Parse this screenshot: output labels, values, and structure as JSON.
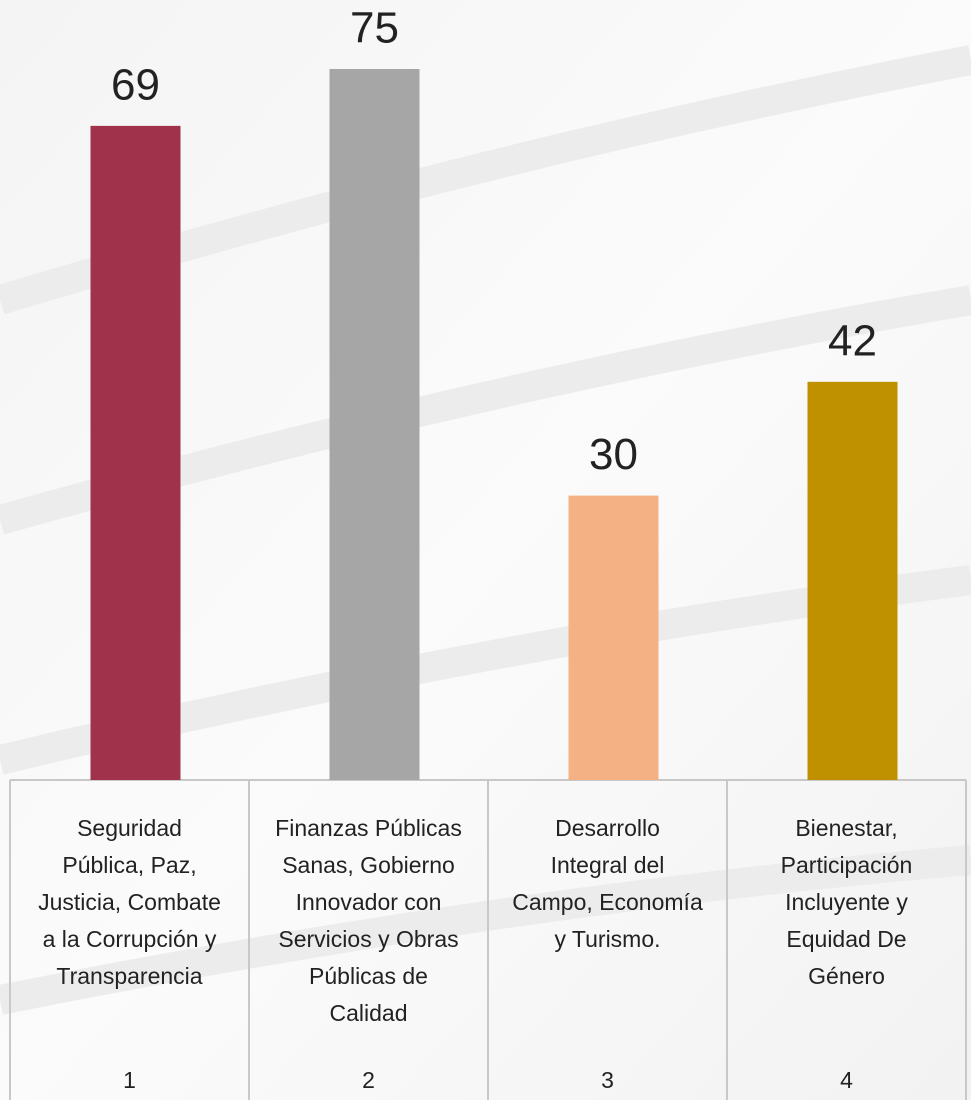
{
  "chart_data": {
    "type": "bar",
    "categories": [
      [
        "Seguridad",
        "Pública, Paz,",
        "Justicia, Combate",
        "a la Corrupción y",
        "Transparencia"
      ],
      [
        "Finanzas Públicas",
        "Sanas, Gobierno",
        "Innovador con",
        "Servicios y Obras",
        "Públicas de",
        "Calidad"
      ],
      [
        "Desarrollo",
        "Integral del",
        "Campo, Economía",
        "y Turismo."
      ],
      [
        "Bienestar,",
        "Participación",
        "Incluyente y",
        "Equidad De",
        "Género"
      ]
    ],
    "category_numbers": [
      1,
      2,
      3,
      4
    ],
    "values": [
      69,
      75,
      30,
      42
    ],
    "colors": [
      "#a0334b",
      "#a6a6a6",
      "#f4b183",
      "#bf9000"
    ],
    "data_labels": true
  }
}
